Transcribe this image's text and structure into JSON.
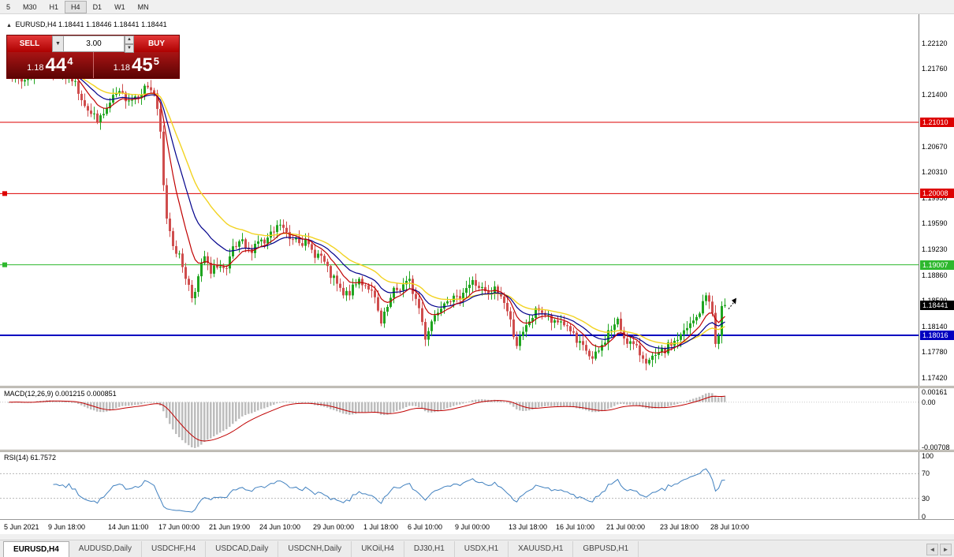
{
  "icons": {
    "collapse": "▲",
    "dropdown": "▼",
    "spin_up": "▲",
    "spin_down": "▼",
    "scroll_left": "◄",
    "scroll_right": "►"
  },
  "colors": {
    "up": "#1fa51f",
    "down": "#cf4d4d",
    "macd_hist": "#bdbdbd",
    "macd_signal": "#c00000",
    "rsi_line": "#4080bf"
  },
  "toolbar": {
    "timeframes": [
      "5",
      "M30",
      "H1",
      "H4",
      "D1",
      "W1",
      "MN"
    ],
    "active": "H4"
  },
  "chart_header": "EURUSD,H4 1.18441 1.18446 1.18441 1.18441",
  "trade_panel": {
    "sell_label": "SELL",
    "buy_label": "BUY",
    "volume": "3.00",
    "sell_price": {
      "prefix": "1.18",
      "big": "44",
      "sup": "4"
    },
    "buy_price": {
      "prefix": "1.18",
      "big": "45",
      "sup": "5"
    }
  },
  "price_axis": {
    "ticks": [
      "1.22120",
      "1.21760",
      "1.21400",
      "1.20670",
      "1.20310",
      "1.19950",
      "1.19590",
      "1.19230",
      "1.18860",
      "1.18500",
      "1.18140",
      "1.17780",
      "1.17420"
    ]
  },
  "hlines": [
    {
      "price": 1.2101,
      "label": "1.21010",
      "color": "#dd0000",
      "width": 1,
      "marker": false
    },
    {
      "price": 1.20008,
      "label": "1.20008",
      "color": "#dd0000",
      "width": 1,
      "marker": true
    },
    {
      "price": 1.19007,
      "label": "1.19007",
      "color": "#2eb82e",
      "width": 1,
      "marker": true
    },
    {
      "price": 1.18016,
      "label": "1.18016",
      "color": "#0000c0",
      "width": 2,
      "marker": false
    }
  ],
  "current_price": {
    "price": 1.18441,
    "label": "1.18441"
  },
  "chart_data": {
    "type": "candlestick",
    "symbol": "EURUSD",
    "timeframe": "H4",
    "bars": 228,
    "ylim": [
      1.17406,
      1.22418
    ],
    "seed": 7,
    "noise_amp": 0.0007,
    "anchors": [
      [
        0,
        1.2172
      ],
      [
        4,
        1.2158
      ],
      [
        10,
        1.218
      ],
      [
        20,
        1.2162
      ],
      [
        26,
        1.2112
      ],
      [
        29,
        1.2105
      ],
      [
        34,
        1.214
      ],
      [
        39,
        1.2135
      ],
      [
        44,
        1.2152
      ],
      [
        46,
        1.2142
      ],
      [
        48,
        1.2085
      ],
      [
        49,
        1.201
      ],
      [
        50,
        1.1968
      ],
      [
        52,
        1.1932
      ],
      [
        55,
        1.19
      ],
      [
        58,
        1.1856
      ],
      [
        60,
        1.1882
      ],
      [
        62,
        1.1912
      ],
      [
        64,
        1.1886
      ],
      [
        66,
        1.1902
      ],
      [
        69,
        1.189
      ],
      [
        71,
        1.1922
      ],
      [
        74,
        1.193
      ],
      [
        76,
        1.1918
      ],
      [
        79,
        1.1936
      ],
      [
        81,
        1.193
      ],
      [
        84,
        1.1946
      ],
      [
        86,
        1.1958
      ],
      [
        89,
        1.1936
      ],
      [
        91,
        1.1942
      ],
      [
        94,
        1.193
      ],
      [
        96,
        1.192
      ],
      [
        99,
        1.1912
      ],
      [
        101,
        1.1892
      ],
      [
        104,
        1.1872
      ],
      [
        106,
        1.1856
      ],
      [
        109,
        1.1866
      ],
      [
        111,
        1.188
      ],
      [
        114,
        1.187
      ],
      [
        116,
        1.185
      ],
      [
        118,
        1.1816
      ],
      [
        120,
        1.184
      ],
      [
        122,
        1.1862
      ],
      [
        125,
        1.1872
      ],
      [
        127,
        1.1876
      ],
      [
        130,
        1.184
      ],
      [
        132,
        1.18
      ],
      [
        134,
        1.1822
      ],
      [
        137,
        1.1846
      ],
      [
        139,
        1.1856
      ],
      [
        142,
        1.185
      ],
      [
        144,
        1.1866
      ],
      [
        147,
        1.1876
      ],
      [
        149,
        1.187
      ],
      [
        152,
        1.1856
      ],
      [
        154,
        1.1866
      ],
      [
        157,
        1.185
      ],
      [
        159,
        1.182
      ],
      [
        161,
        1.179
      ],
      [
        163,
        1.1802
      ],
      [
        165,
        1.1822
      ],
      [
        168,
        1.184
      ],
      [
        170,
        1.183
      ],
      [
        173,
        1.1816
      ],
      [
        175,
        1.1822
      ],
      [
        178,
        1.181
      ],
      [
        180,
        1.179
      ],
      [
        183,
        1.178
      ],
      [
        185,
        1.1766
      ],
      [
        188,
        1.1786
      ],
      [
        190,
        1.1806
      ],
      [
        193,
        1.182
      ],
      [
        195,
        1.18
      ],
      [
        198,
        1.1786
      ],
      [
        200,
        1.1776
      ],
      [
        203,
        1.1764
      ],
      [
        205,
        1.177
      ],
      [
        208,
        1.178
      ],
      [
        210,
        1.179
      ],
      [
        213,
        1.18
      ],
      [
        215,
        1.181
      ],
      [
        218,
        1.1826
      ],
      [
        220,
        1.1845
      ],
      [
        221,
        1.1858
      ],
      [
        222,
        1.1854
      ],
      [
        223,
        1.183
      ],
      [
        224,
        1.179
      ],
      [
        225,
        1.18
      ],
      [
        226,
        1.1842
      ],
      [
        227,
        1.18441
      ]
    ],
    "ma": [
      {
        "name": "slow",
        "period": 30,
        "color": "#f2d321",
        "width": 1.4
      },
      {
        "name": "mid",
        "period": 18,
        "color": "#00008b",
        "width": 1.2
      },
      {
        "name": "fast",
        "period": 9,
        "color": "#c00000",
        "width": 1.2
      }
    ],
    "indicators": {
      "macd": {
        "label": "MACD(12,26,9) 0.001215 0.000851",
        "fast": 12,
        "slow": 26,
        "signal": 9,
        "axis_ticks": [
          "0.00161",
          "0.00",
          "-0.00708"
        ],
        "axis_values": [
          0.00161,
          0,
          -0.00708
        ],
        "ylim": [
          -0.0075,
          0.0022
        ]
      },
      "rsi": {
        "label": "RSI(14) 61.7572",
        "period": 14,
        "axis_ticks": [
          "100",
          "70",
          "30",
          "0"
        ],
        "axis_values": [
          100,
          70,
          30,
          0
        ],
        "levels": [
          70,
          30
        ],
        "ylim": [
          0,
          100
        ]
      }
    },
    "time_ticks": [
      {
        "label": "5 Jun 2021",
        "i": 0
      },
      {
        "label": "9 Jun 18:00",
        "i": 14
      },
      {
        "label": "14 Jun 11:00",
        "i": 33
      },
      {
        "label": "17 Jun 00:00",
        "i": 49
      },
      {
        "label": "21 Jun 19:00",
        "i": 65
      },
      {
        "label": "24 Jun 10:00",
        "i": 81
      },
      {
        "label": "29 Jun 00:00",
        "i": 98
      },
      {
        "label": "1 Jul 18:00",
        "i": 114
      },
      {
        "label": "6 Jul 10:00",
        "i": 128
      },
      {
        "label": "9 Jul 00:00",
        "i": 143
      },
      {
        "label": "13 Jul 18:00",
        "i": 160
      },
      {
        "label": "16 Jul 10:00",
        "i": 175
      },
      {
        "label": "21 Jul 00:00",
        "i": 191
      },
      {
        "label": "23 Jul 18:00",
        "i": 208
      },
      {
        "label": "28 Jul 10:00",
        "i": 224
      }
    ]
  },
  "tabs": {
    "items": [
      "EURUSD,H4",
      "AUDUSD,Daily",
      "USDCHF,H4",
      "USDCAD,Daily",
      "USDCNH,Daily",
      "UKOil,H4",
      "DJ30,H1",
      "USDX,H1",
      "XAUUSD,H1",
      "GBPUSD,H1"
    ],
    "active_index": 0
  }
}
